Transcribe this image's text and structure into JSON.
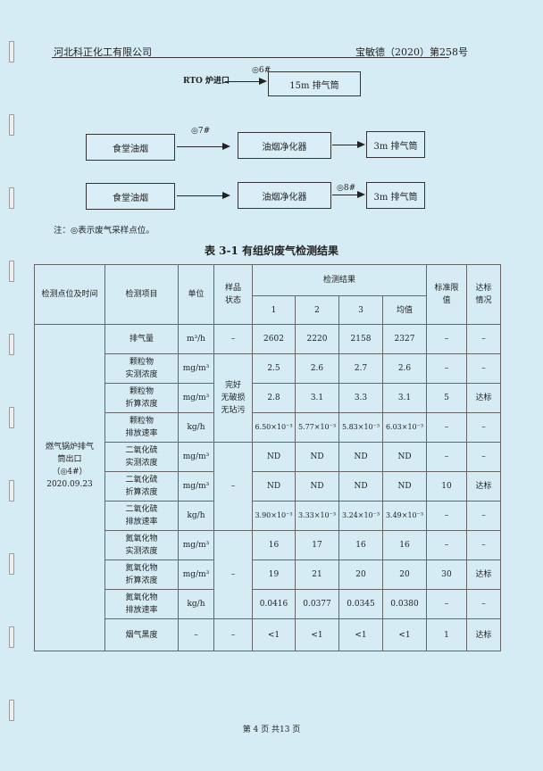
{
  "header": {
    "company": "河北科正化工有限公司",
    "doc_no": "宝敏德（2020）第258号"
  },
  "diagram": {
    "row1": {
      "source": "RTO 炉进口",
      "point": "◎6#",
      "stack": "15m 排气筒"
    },
    "row2": {
      "source": "食堂油烟",
      "point": "◎7#",
      "device": "油烟净化器",
      "stack": "3m 排气筒"
    },
    "row3": {
      "source": "食堂油烟",
      "point": "◎8#",
      "device": "油烟净化器",
      "stack": "3m 排气筒"
    }
  },
  "note": "注：◎表示废气采样点位。",
  "table": {
    "title": "表 3-1  有组织废气检测结果",
    "headers": {
      "location": "检测点位及时间",
      "item": "检测项目",
      "unit": "单位",
      "state": "样品状态",
      "results": "检测结果",
      "r1": "1",
      "r2": "2",
      "r3": "3",
      "avg": "均值",
      "limit": "标准限值",
      "compliance": "达标情况"
    },
    "location": [
      "燃气锅炉排气",
      "筒出口",
      "（◎4#）",
      "2020.09.23"
    ],
    "states": {
      "flow": "–",
      "particulate": "完好\n无破损\n无玷污",
      "so2": "–",
      "nox": "–",
      "smoke": "–"
    },
    "rows": [
      {
        "item": "排气量",
        "unit": "m³/h",
        "v": [
          "2602",
          "2220",
          "2158",
          "2327"
        ],
        "limit": "–",
        "ok": "–"
      },
      {
        "item": "颗粒物\n实测浓度",
        "unit": "mg/m³",
        "v": [
          "2.5",
          "2.6",
          "2.7",
          "2.6"
        ],
        "limit": "–",
        "ok": "–"
      },
      {
        "item": "颗粒物\n折算浓度",
        "unit": "mg/m³",
        "v": [
          "2.8",
          "3.1",
          "3.3",
          "3.1"
        ],
        "limit": "5",
        "ok": "达标"
      },
      {
        "item": "颗粒物\n排放速率",
        "unit": "kg/h",
        "v": [
          "6.50×10⁻³",
          "5.77×10⁻³",
          "5.83×10⁻³",
          "6.03×10⁻³"
        ],
        "limit": "–",
        "ok": "–"
      },
      {
        "item": "二氧化硫\n实测浓度",
        "unit": "mg/m³",
        "v": [
          "ND",
          "ND",
          "ND",
          "ND"
        ],
        "limit": "–",
        "ok": "–"
      },
      {
        "item": "二氧化硫\n折算浓度",
        "unit": "mg/m³",
        "v": [
          "ND",
          "ND",
          "ND",
          "ND"
        ],
        "limit": "10",
        "ok": "达标"
      },
      {
        "item": "二氧化硫\n排放速率",
        "unit": "kg/h",
        "v": [
          "3.90×10⁻³",
          "3.33×10⁻³",
          "3.24×10⁻³",
          "3.49×10⁻³"
        ],
        "limit": "–",
        "ok": "–"
      },
      {
        "item": "氮氧化物\n实测浓度",
        "unit": "mg/m³",
        "v": [
          "16",
          "17",
          "16",
          "16"
        ],
        "limit": "–",
        "ok": "–"
      },
      {
        "item": "氮氧化物\n折算浓度",
        "unit": "mg/m³",
        "v": [
          "19",
          "21",
          "20",
          "20"
        ],
        "limit": "30",
        "ok": "达标"
      },
      {
        "item": "氮氧化物\n排放速率",
        "unit": "kg/h",
        "v": [
          "0.0416",
          "0.0377",
          "0.0345",
          "0.0380"
        ],
        "limit": "–",
        "ok": "–"
      },
      {
        "item": "烟气黑度",
        "unit": "–",
        "v": [
          "<1",
          "<1",
          "<1",
          "<1"
        ],
        "limit": "1",
        "ok": "达标"
      }
    ]
  },
  "footer": "第 4 页 共13 页"
}
